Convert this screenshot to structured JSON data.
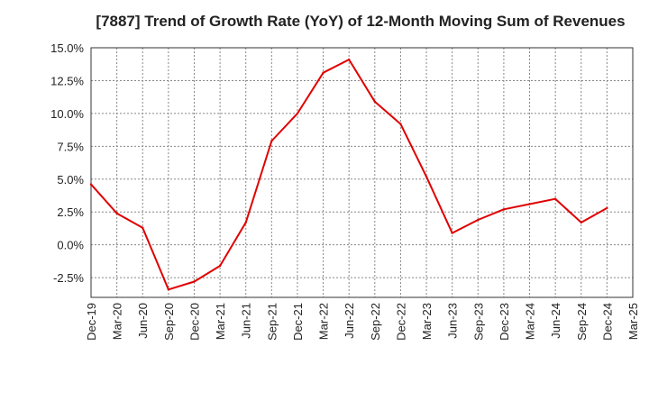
{
  "chart_data": {
    "type": "line",
    "title": "[7887]  Trend of Growth Rate (YoY) of 12-Month Moving Sum of Revenues",
    "xlabel": "",
    "ylabel": "",
    "ylim": [
      -4.0,
      15.0
    ],
    "y_ticks": [
      15.0,
      12.5,
      10.0,
      7.5,
      5.0,
      2.5,
      0.0,
      -2.5
    ],
    "y_tick_labels": [
      "15.0%",
      "12.5%",
      "10.0%",
      "7.5%",
      "5.0%",
      "2.5%",
      "0.0%",
      "-2.5%"
    ],
    "x_tick_labels": [
      "Dec-19",
      "Mar-20",
      "Jun-20",
      "Sep-20",
      "Dec-20",
      "Mar-21",
      "Jun-21",
      "Sep-21",
      "Dec-21",
      "Mar-22",
      "Jun-22",
      "Sep-22",
      "Dec-22",
      "Mar-23",
      "Jun-23",
      "Sep-23",
      "Dec-23",
      "Mar-24",
      "Jun-24",
      "Sep-24",
      "Dec-24",
      "Mar-25"
    ],
    "grid": true,
    "series": [
      {
        "name": "",
        "color": "#e00000",
        "x": [
          "Dec-19",
          "Mar-20",
          "Jun-20",
          "Sep-20",
          "Dec-20",
          "Mar-21",
          "Jun-21",
          "Sep-21",
          "Dec-21",
          "Mar-22",
          "Jun-22",
          "Sep-22",
          "Dec-22",
          "Mar-23",
          "Jun-23",
          "Sep-23",
          "Dec-23",
          "Mar-24",
          "Jun-24",
          "Sep-24",
          "Dec-24"
        ],
        "values": [
          4.6,
          2.4,
          1.3,
          -3.4,
          -2.8,
          -1.6,
          1.7,
          7.9,
          10.0,
          13.1,
          14.1,
          10.9,
          9.2,
          5.2,
          0.9,
          1.9,
          2.7,
          3.1,
          3.5,
          1.7,
          2.8
        ]
      }
    ]
  }
}
